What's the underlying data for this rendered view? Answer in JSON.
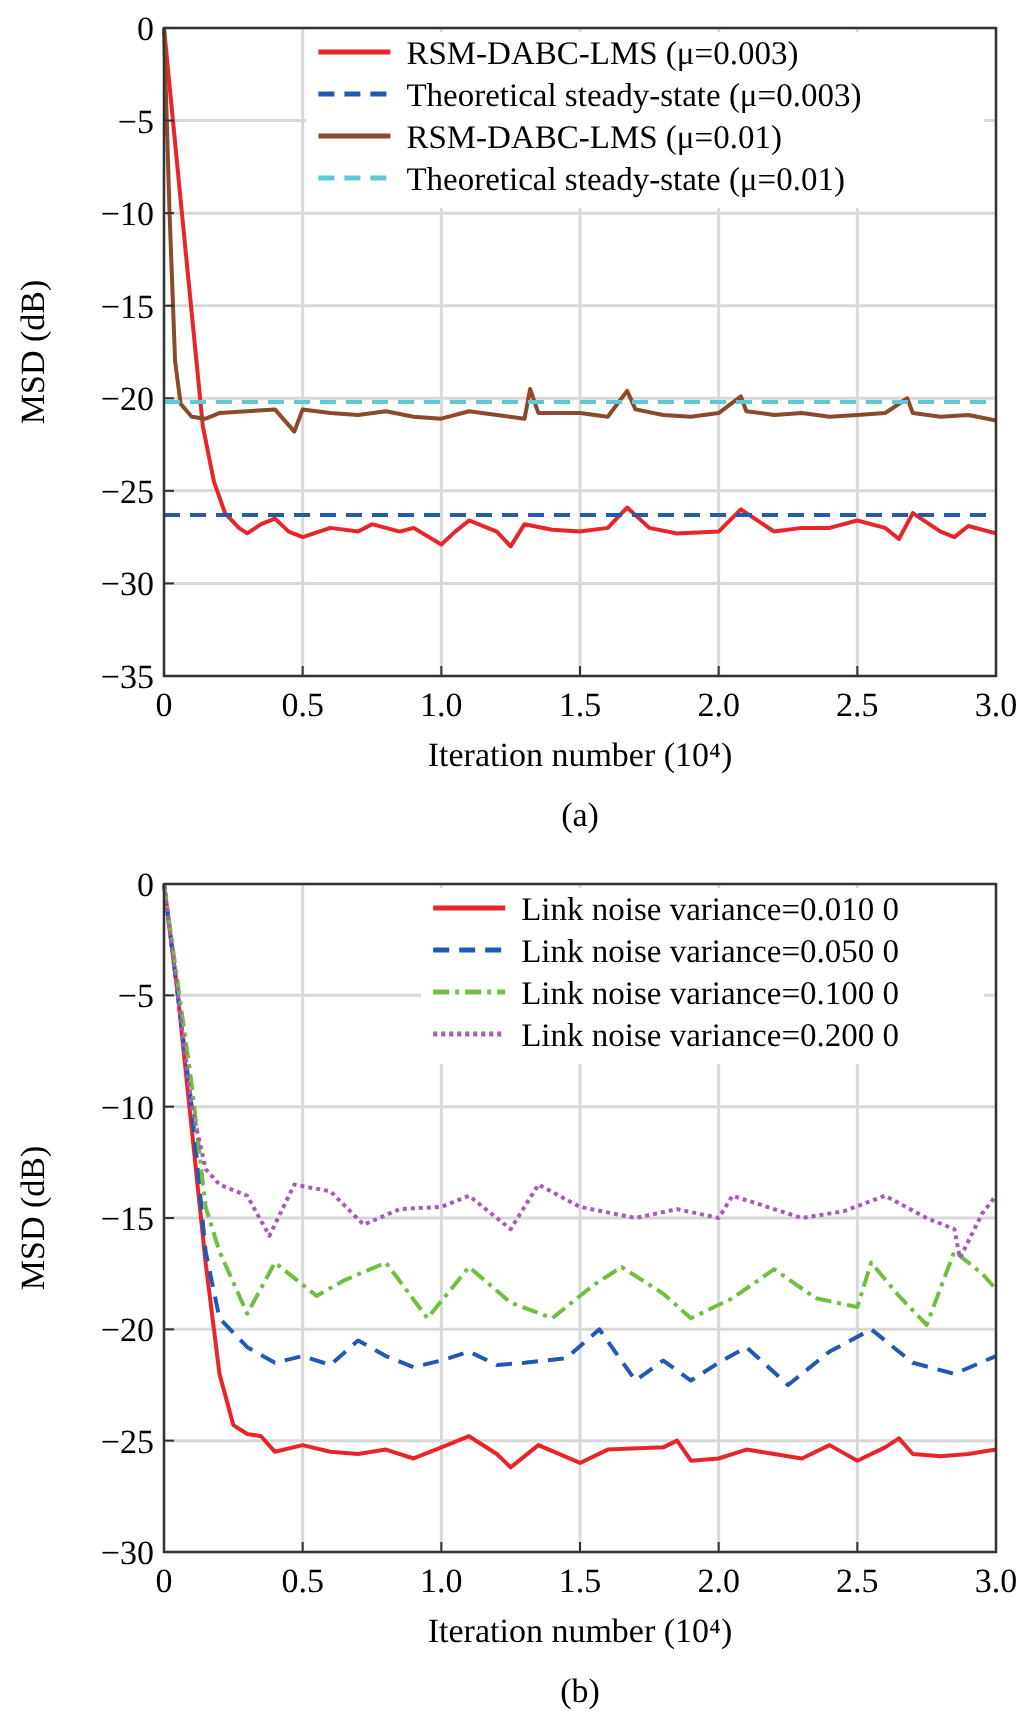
{
  "chart_data": [
    {
      "type": "line",
      "title": "(a)",
      "xlabel": "Iteration number (10⁴)",
      "ylabel": "MSD (dB)",
      "xlim": [
        0,
        3
      ],
      "ylim": [
        -35,
        0
      ],
      "xticks": [
        0,
        0.5,
        {
          "value": 1,
          "label": "1.0"
        },
        1.5,
        {
          "value": 2,
          "label": "2.0"
        },
        2.5,
        {
          "value": 3,
          "label": "3.0"
        }
      ],
      "yticks": [
        -35,
        -30,
        -25,
        -20,
        -15,
        -10,
        -5,
        0
      ],
      "grid": true,
      "legend": "top right",
      "series": [
        {
          "name": "RSM-DABC-LMS (μ=0.003)",
          "color": "#e8262a",
          "line_style": "solid",
          "x": [
            0,
            0.06,
            0.14,
            0.18,
            0.22,
            0.27,
            0.3,
            0.35,
            0.4,
            0.45,
            0.5,
            0.6,
            0.7,
            0.75,
            0.85,
            0.9,
            1.0,
            1.05,
            1.1,
            1.2,
            1.25,
            1.3,
            1.4,
            1.5,
            1.6,
            1.67,
            1.75,
            1.85,
            2.0,
            2.08,
            2.2,
            2.3,
            2.4,
            2.5,
            2.6,
            2.65,
            2.7,
            2.8,
            2.85,
            2.9,
            3.0
          ],
          "values": [
            0,
            -9.3,
            -21.5,
            -24.5,
            -26.2,
            -27,
            -27.3,
            -26.8,
            -26.5,
            -27.2,
            -27.5,
            -27,
            -27.2,
            -26.8,
            -27.2,
            -27,
            -27.9,
            -27.2,
            -26.6,
            -27.2,
            -28,
            -26.8,
            -27.1,
            -27.2,
            -27,
            -25.9,
            -27,
            -27.3,
            -27.2,
            -26,
            -27.2,
            -27,
            -27,
            -26.6,
            -27,
            -27.6,
            -26.2,
            -27.2,
            -27.5,
            -26.9,
            -27.3
          ]
        },
        {
          "name": "Theoretical steady-state (μ=0.003)",
          "color": "#2159b5",
          "line_style": "dashed",
          "x": [
            0,
            3
          ],
          "values": [
            -26.3,
            -26.3
          ]
        },
        {
          "name": "RSM-DABC-LMS (μ=0.01)",
          "color": "#8b4a2b",
          "line_style": "solid",
          "x": [
            0,
            0.02,
            0.04,
            0.06,
            0.1,
            0.15,
            0.2,
            0.3,
            0.4,
            0.47,
            0.5,
            0.6,
            0.7,
            0.8,
            0.9,
            1.0,
            1.1,
            1.2,
            1.3,
            1.32,
            1.35,
            1.5,
            1.6,
            1.67,
            1.7,
            1.8,
            1.9,
            2.0,
            2.08,
            2.1,
            2.2,
            2.3,
            2.4,
            2.5,
            2.6,
            2.68,
            2.7,
            2.8,
            2.9,
            3.0
          ],
          "values": [
            0,
            -10,
            -18,
            -20.3,
            -21,
            -21.1,
            -20.8,
            -20.7,
            -20.6,
            -21.8,
            -20.6,
            -20.8,
            -20.9,
            -20.7,
            -21,
            -21.1,
            -20.7,
            -20.9,
            -21.1,
            -19.5,
            -20.8,
            -20.8,
            -21,
            -19.6,
            -20.6,
            -20.9,
            -21,
            -20.8,
            -19.9,
            -20.7,
            -20.9,
            -20.8,
            -21,
            -20.9,
            -20.8,
            -20,
            -20.8,
            -21,
            -20.9,
            -21.2
          ]
        },
        {
          "name": "Theoretical steady-state (μ=0.01)",
          "color": "#5ec8d6",
          "line_style": "dashed",
          "x": [
            0,
            3
          ],
          "values": [
            -20.2,
            -20.2
          ]
        }
      ]
    },
    {
      "type": "line",
      "title": "(b)",
      "xlabel": "Iteration number (10⁴)",
      "ylabel": "MSD (dB)",
      "xlim": [
        0,
        3
      ],
      "ylim": [
        -30,
        0
      ],
      "xticks": [
        0,
        0.5,
        {
          "value": 1,
          "label": "1.0"
        },
        1.5,
        {
          "value": 2,
          "label": "2.0"
        },
        2.5,
        {
          "value": 3,
          "label": "3.0"
        }
      ],
      "yticks": [
        -30,
        -25,
        -20,
        -15,
        -10,
        -5,
        0
      ],
      "grid": true,
      "legend": "top right",
      "series": [
        {
          "name": "Link noise variance=0.010 0",
          "color": "#e8262a",
          "line_style": "solid",
          "x": [
            0,
            0.05,
            0.1,
            0.15,
            0.2,
            0.25,
            0.3,
            0.35,
            0.4,
            0.5,
            0.6,
            0.7,
            0.8,
            0.9,
            1.0,
            1.1,
            1.2,
            1.25,
            1.35,
            1.5,
            1.6,
            1.8,
            1.85,
            1.9,
            2.0,
            2.1,
            2.2,
            2.3,
            2.4,
            2.5,
            2.6,
            2.65,
            2.7,
            2.8,
            2.9,
            3.0
          ],
          "values": [
            0,
            -5,
            -11,
            -17,
            -22,
            -24.3,
            -24.7,
            -24.8,
            -25.5,
            -25.2,
            -25.5,
            -25.6,
            -25.4,
            -25.8,
            -25.3,
            -24.8,
            -25.6,
            -26.2,
            -25.2,
            -26,
            -25.4,
            -25.3,
            -25,
            -25.9,
            -25.8,
            -25.4,
            -25.6,
            -25.8,
            -25.2,
            -25.9,
            -25.3,
            -24.9,
            -25.6,
            -25.7,
            -25.6,
            -25.4
          ]
        },
        {
          "name": "Link noise variance=0.050 0",
          "color": "#2159b5",
          "line_style": "dashed",
          "x": [
            0,
            0.1,
            0.15,
            0.2,
            0.3,
            0.4,
            0.5,
            0.6,
            0.7,
            0.8,
            0.9,
            1.0,
            1.1,
            1.2,
            1.3,
            1.45,
            1.57,
            1.7,
            1.8,
            1.9,
            2.0,
            2.1,
            2.25,
            2.4,
            2.55,
            2.7,
            2.85,
            3.0
          ],
          "values": [
            0,
            -10,
            -16.5,
            -19.5,
            -20.8,
            -21.5,
            -21.2,
            -21.6,
            -20.5,
            -21.2,
            -21.7,
            -21.4,
            -21,
            -21.6,
            -21.5,
            -21.3,
            -20,
            -22.3,
            -21.4,
            -22.3,
            -21.5,
            -20.8,
            -22.5,
            -21,
            -20,
            -21.5,
            -22,
            -21.2
          ]
        },
        {
          "name": "Link noise variance=0.100 0",
          "color": "#71bf3f",
          "line_style": "dashdot",
          "x": [
            0,
            0.1,
            0.15,
            0.2,
            0.3,
            0.4,
            0.55,
            0.65,
            0.8,
            0.95,
            1.1,
            1.25,
            1.4,
            1.55,
            1.65,
            1.8,
            1.9,
            2.05,
            2.2,
            2.35,
            2.5,
            2.55,
            2.65,
            2.75,
            2.85,
            2.95,
            3.0
          ],
          "values": [
            0,
            -9,
            -14.5,
            -16.5,
            -19.3,
            -17,
            -18.5,
            -17.8,
            -17,
            -19.5,
            -17.2,
            -18.8,
            -19.5,
            -18,
            -17.2,
            -18.4,
            -19.5,
            -18.6,
            -17.3,
            -18.6,
            -19,
            -17,
            -18.5,
            -19.8,
            -16.5,
            -17.5,
            -18.2
          ]
        },
        {
          "name": "Link noise variance=0.200 0",
          "color": "#a65bb5",
          "line_style": "dotted",
          "x": [
            0,
            0.05,
            0.1,
            0.15,
            0.2,
            0.3,
            0.38,
            0.47,
            0.6,
            0.72,
            0.85,
            1.0,
            1.1,
            1.25,
            1.35,
            1.5,
            1.7,
            1.85,
            2.0,
            2.05,
            2.15,
            2.3,
            2.45,
            2.6,
            2.75,
            2.85,
            2.87,
            2.95,
            3.0
          ],
          "values": [
            0,
            -5,
            -10,
            -12.8,
            -13.5,
            -14,
            -15.8,
            -13.5,
            -13.8,
            -15.3,
            -14.6,
            -14.5,
            -14,
            -15.5,
            -13.5,
            -14.5,
            -15,
            -14.6,
            -15,
            -14,
            -14.4,
            -15,
            -14.7,
            -14,
            -15,
            -15.5,
            -16.8,
            -14.8,
            -14
          ]
        }
      ]
    }
  ]
}
